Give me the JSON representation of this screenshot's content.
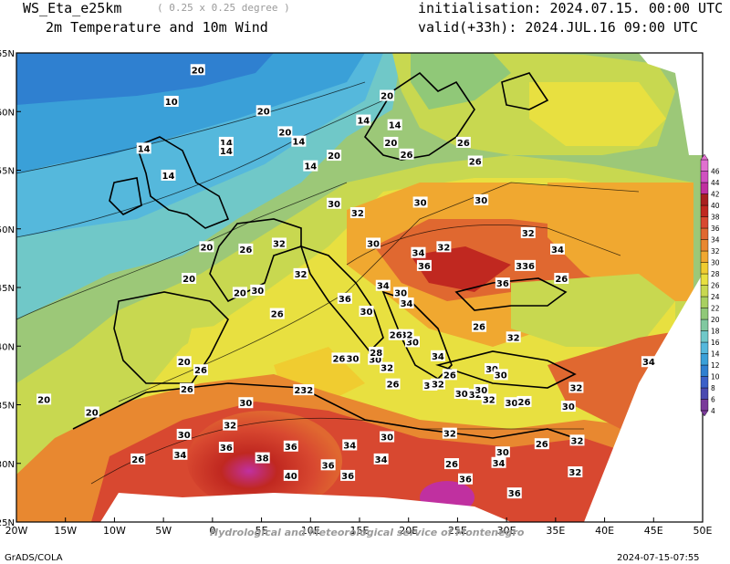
{
  "header": {
    "model": "WS_Eta_e25km",
    "resolution": "( 0.25 x 0.25 degree )",
    "product": "2m Temperature and 10m Wind",
    "init": "initialisation: 2024.07.15. 00:00 UTC",
    "valid": "valid(+33h): 2024.JUL.16 09:00 UTC"
  },
  "footer": {
    "left": "GrADS/COLA",
    "right": "2024-07-15-07:55",
    "watermark": "Hydrological and Meteorological service of Montenegro"
  },
  "axes": {
    "lon_labels": [
      "20W",
      "15W",
      "10W",
      "5W",
      "0",
      "5E",
      "10E",
      "15E",
      "20E",
      "25E",
      "30E",
      "35E",
      "40E",
      "45E",
      "50E"
    ],
    "lat_labels": [
      "65N",
      "60N",
      "55N",
      "50N",
      "45N",
      "40N",
      "35N",
      "30N",
      "25N"
    ]
  },
  "colorbar": {
    "levels": [
      "4",
      "6",
      "8",
      "10",
      "12",
      "14",
      "16",
      "18",
      "20",
      "22",
      "24",
      "26",
      "28",
      "30",
      "32",
      "34",
      "36",
      "38",
      "40",
      "42",
      "44",
      "46"
    ],
    "colors": [
      "#7a3a9a",
      "#4a4ab0",
      "#3b60c8",
      "#2f80d0",
      "#3aa0d8",
      "#55b8dc",
      "#70c8c8",
      "#80c8a0",
      "#90c878",
      "#a8d060",
      "#c8d850",
      "#e8e040",
      "#f0cc30",
      "#f0a830",
      "#e88830",
      "#e06830",
      "#d84830",
      "#c02820",
      "#a82020",
      "#c030a0",
      "#d050c0",
      "#e070d0"
    ]
  },
  "contour_labels": [
    {
      "t": "20",
      "lon": -1.5,
      "lat": 63.5
    },
    {
      "t": "10",
      "lon": -4.2,
      "lat": 60.8
    },
    {
      "t": "20",
      "lon": 5.2,
      "lat": 60
    },
    {
      "t": "14",
      "lon": 1.4,
      "lat": 57.3
    },
    {
      "t": "14",
      "lon": 1.4,
      "lat": 56.6
    },
    {
      "t": "14",
      "lon": -7,
      "lat": 56.8
    },
    {
      "t": "14",
      "lon": -4.5,
      "lat": 54.5
    },
    {
      "t": "20",
      "lon": 7.4,
      "lat": 58.2
    },
    {
      "t": "14",
      "lon": 8.8,
      "lat": 57.4
    },
    {
      "t": "14",
      "lon": 10,
      "lat": 55.3
    },
    {
      "t": "20",
      "lon": 12.4,
      "lat": 56.2
    },
    {
      "t": "14",
      "lon": 15.4,
      "lat": 59.2
    },
    {
      "t": "20",
      "lon": 17.8,
      "lat": 61.3
    },
    {
      "t": "14",
      "lon": 18.6,
      "lat": 58.8
    },
    {
      "t": "20",
      "lon": 18.2,
      "lat": 57.3
    },
    {
      "t": "26",
      "lon": 19.8,
      "lat": 56.3
    },
    {
      "t": "26",
      "lon": 25.6,
      "lat": 57.3
    },
    {
      "t": "26",
      "lon": 26.8,
      "lat": 55.7
    },
    {
      "t": "30",
      "lon": 12.4,
      "lat": 52.1
    },
    {
      "t": "32",
      "lon": 14.8,
      "lat": 51.3
    },
    {
      "t": "30",
      "lon": 21.2,
      "lat": 52.2
    },
    {
      "t": "30",
      "lon": 27.4,
      "lat": 52.4
    },
    {
      "t": "32",
      "lon": 23.6,
      "lat": 48.4
    },
    {
      "t": "34",
      "lon": 21,
      "lat": 47.9
    },
    {
      "t": "32",
      "lon": 32.2,
      "lat": 49.6
    },
    {
      "t": "34",
      "lon": 35.2,
      "lat": 48.2
    },
    {
      "t": "36",
      "lon": 21.6,
      "lat": 46.8
    },
    {
      "t": "36",
      "lon": 29.6,
      "lat": 45.3
    },
    {
      "t": "336",
      "lon": 31.9,
      "lat": 46.8
    },
    {
      "t": "26",
      "lon": 35.6,
      "lat": 45.7
    },
    {
      "t": "30",
      "lon": 16.4,
      "lat": 48.7
    },
    {
      "t": "32",
      "lon": 6.8,
      "lat": 48.7
    },
    {
      "t": "26",
      "lon": 3.4,
      "lat": 48.2
    },
    {
      "t": "20",
      "lon": -0.6,
      "lat": 48.4
    },
    {
      "t": "20",
      "lon": -2.4,
      "lat": 45.7
    },
    {
      "t": "20",
      "lon": 2.8,
      "lat": 44.5
    },
    {
      "t": "30",
      "lon": 4.6,
      "lat": 44.7
    },
    {
      "t": "34",
      "lon": 17.4,
      "lat": 45.1
    },
    {
      "t": "30",
      "lon": 19.2,
      "lat": 44.5
    },
    {
      "t": "36",
      "lon": 13.5,
      "lat": 44
    },
    {
      "t": "32",
      "lon": 9,
      "lat": 46.1
    },
    {
      "t": "26",
      "lon": 6.6,
      "lat": 42.7
    },
    {
      "t": "30",
      "lon": 15.7,
      "lat": 42.9
    },
    {
      "t": "34",
      "lon": 19.8,
      "lat": 43.6
    },
    {
      "t": "30",
      "lon": 20.4,
      "lat": 40.3
    },
    {
      "t": "32",
      "lon": 19.8,
      "lat": 40.9
    },
    {
      "t": "26",
      "lon": 27.2,
      "lat": 41.6
    },
    {
      "t": "32",
      "lon": 30.7,
      "lat": 40.7
    },
    {
      "t": "34",
      "lon": 23,
      "lat": 39.1
    },
    {
      "t": "30",
      "lon": 28.5,
      "lat": 38
    },
    {
      "t": "30",
      "lon": 29.4,
      "lat": 37.5
    },
    {
      "t": "26",
      "lon": 24.2,
      "lat": 37.5
    },
    {
      "t": "30",
      "lon": 22.2,
      "lat": 36.6
    },
    {
      "t": "26",
      "lon": 18.4,
      "lat": 36.7
    },
    {
      "t": "32",
      "lon": 23,
      "lat": 36.7
    },
    {
      "t": "32",
      "lon": 26.8,
      "lat": 35.8
    },
    {
      "t": "30",
      "lon": 25.4,
      "lat": 35.9
    },
    {
      "t": "30",
      "lon": 30.5,
      "lat": 35.1
    },
    {
      "t": "26",
      "lon": 31.8,
      "lat": 35.2
    },
    {
      "t": "30",
      "lon": 36.3,
      "lat": 34.8
    },
    {
      "t": "32",
      "lon": 28.2,
      "lat": 35.4
    },
    {
      "t": "34",
      "lon": 44.5,
      "lat": 38.6
    },
    {
      "t": "32",
      "lon": 37.1,
      "lat": 36.4
    },
    {
      "t": "26",
      "lon": 18.7,
      "lat": 40.9
    },
    {
      "t": "30",
      "lon": 16.6,
      "lat": 38.8
    },
    {
      "t": "32",
      "lon": 17.8,
      "lat": 38.1
    },
    {
      "t": "28",
      "lon": 16.7,
      "lat": 39.4
    },
    {
      "t": "26",
      "lon": 12.9,
      "lat": 38.9
    },
    {
      "t": "30",
      "lon": 14.3,
      "lat": 38.9
    },
    {
      "t": "20",
      "lon": -2.9,
      "lat": 38.6
    },
    {
      "t": "26",
      "lon": -1.2,
      "lat": 37.9
    },
    {
      "t": "26",
      "lon": -2.6,
      "lat": 36.3
    },
    {
      "t": "30",
      "lon": 3.4,
      "lat": 35.1
    },
    {
      "t": "232",
      "lon": 9.3,
      "lat": 36.2
    },
    {
      "t": "20",
      "lon": -17.2,
      "lat": 35.4
    },
    {
      "t": "20",
      "lon": -12.3,
      "lat": 34.3
    },
    {
      "t": "30",
      "lon": -2.9,
      "lat": 32.4
    },
    {
      "t": "32",
      "lon": 1.8,
      "lat": 33.2
    },
    {
      "t": "36",
      "lon": 1.4,
      "lat": 31.3
    },
    {
      "t": "34",
      "lon": -3.3,
      "lat": 30.7
    },
    {
      "t": "26",
      "lon": -7.6,
      "lat": 30.3
    },
    {
      "t": "38",
      "lon": 5.1,
      "lat": 30.4
    },
    {
      "t": "36",
      "lon": 8,
      "lat": 31.4
    },
    {
      "t": "40",
      "lon": 8,
      "lat": 28.9
    },
    {
      "t": "34",
      "lon": 14,
      "lat": 31.5
    },
    {
      "t": "36",
      "lon": 11.8,
      "lat": 29.8
    },
    {
      "t": "30",
      "lon": 17.8,
      "lat": 32.2
    },
    {
      "t": "36",
      "lon": 13.8,
      "lat": 28.9
    },
    {
      "t": "34",
      "lon": 17.2,
      "lat": 30.3
    },
    {
      "t": "26",
      "lon": 24.4,
      "lat": 29.9
    },
    {
      "t": "32",
      "lon": 24.2,
      "lat": 32.5
    },
    {
      "t": "30",
      "lon": 29.6,
      "lat": 30.9
    },
    {
      "t": "34",
      "lon": 29.2,
      "lat": 30
    },
    {
      "t": "36",
      "lon": 25.8,
      "lat": 28.6
    },
    {
      "t": "26",
      "lon": 33.6,
      "lat": 31.6
    },
    {
      "t": "36",
      "lon": 30.8,
      "lat": 27.4
    },
    {
      "t": "32",
      "lon": 37.2,
      "lat": 31.9
    },
    {
      "t": "32",
      "lon": 37,
      "lat": 29.2
    },
    {
      "t": "30",
      "lon": 27.4,
      "lat": 36.2
    }
  ]
}
